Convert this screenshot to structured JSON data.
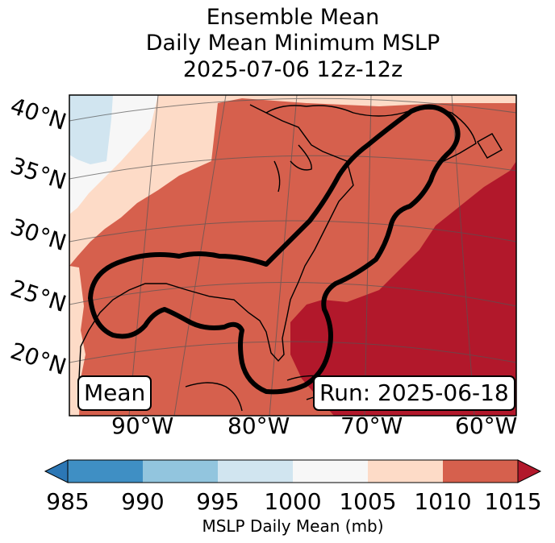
{
  "title": {
    "line1": "Ensemble Mean",
    "line2": "Daily Mean Minimum MSLP",
    "line3": "2025-07-06 12z-12z"
  },
  "map": {
    "lat_labels": [
      "40°N",
      "35°N",
      "30°N",
      "25°N",
      "20°N"
    ],
    "lon_labels": [
      "90°W",
      "80°W",
      "70°W",
      "60°W"
    ],
    "mean_label": "Mean",
    "run_label": "Run: 2025-06-18",
    "colors": {
      "c985": "#2c77b5",
      "c990": "#3f8fc4",
      "c995": "#92c5de",
      "c1000": "#d1e5f0",
      "c1005": "#f7f7f7",
      "c1010": "#fddbc7",
      "c1015": "#d6604d",
      "c_hi": "#b2182b",
      "contour": "#000000"
    }
  },
  "colorbar": {
    "ticks": [
      "985",
      "990",
      "995",
      "1000",
      "1005",
      "1010",
      "1015"
    ],
    "title": "MSLP Daily Mean (mb)"
  }
}
